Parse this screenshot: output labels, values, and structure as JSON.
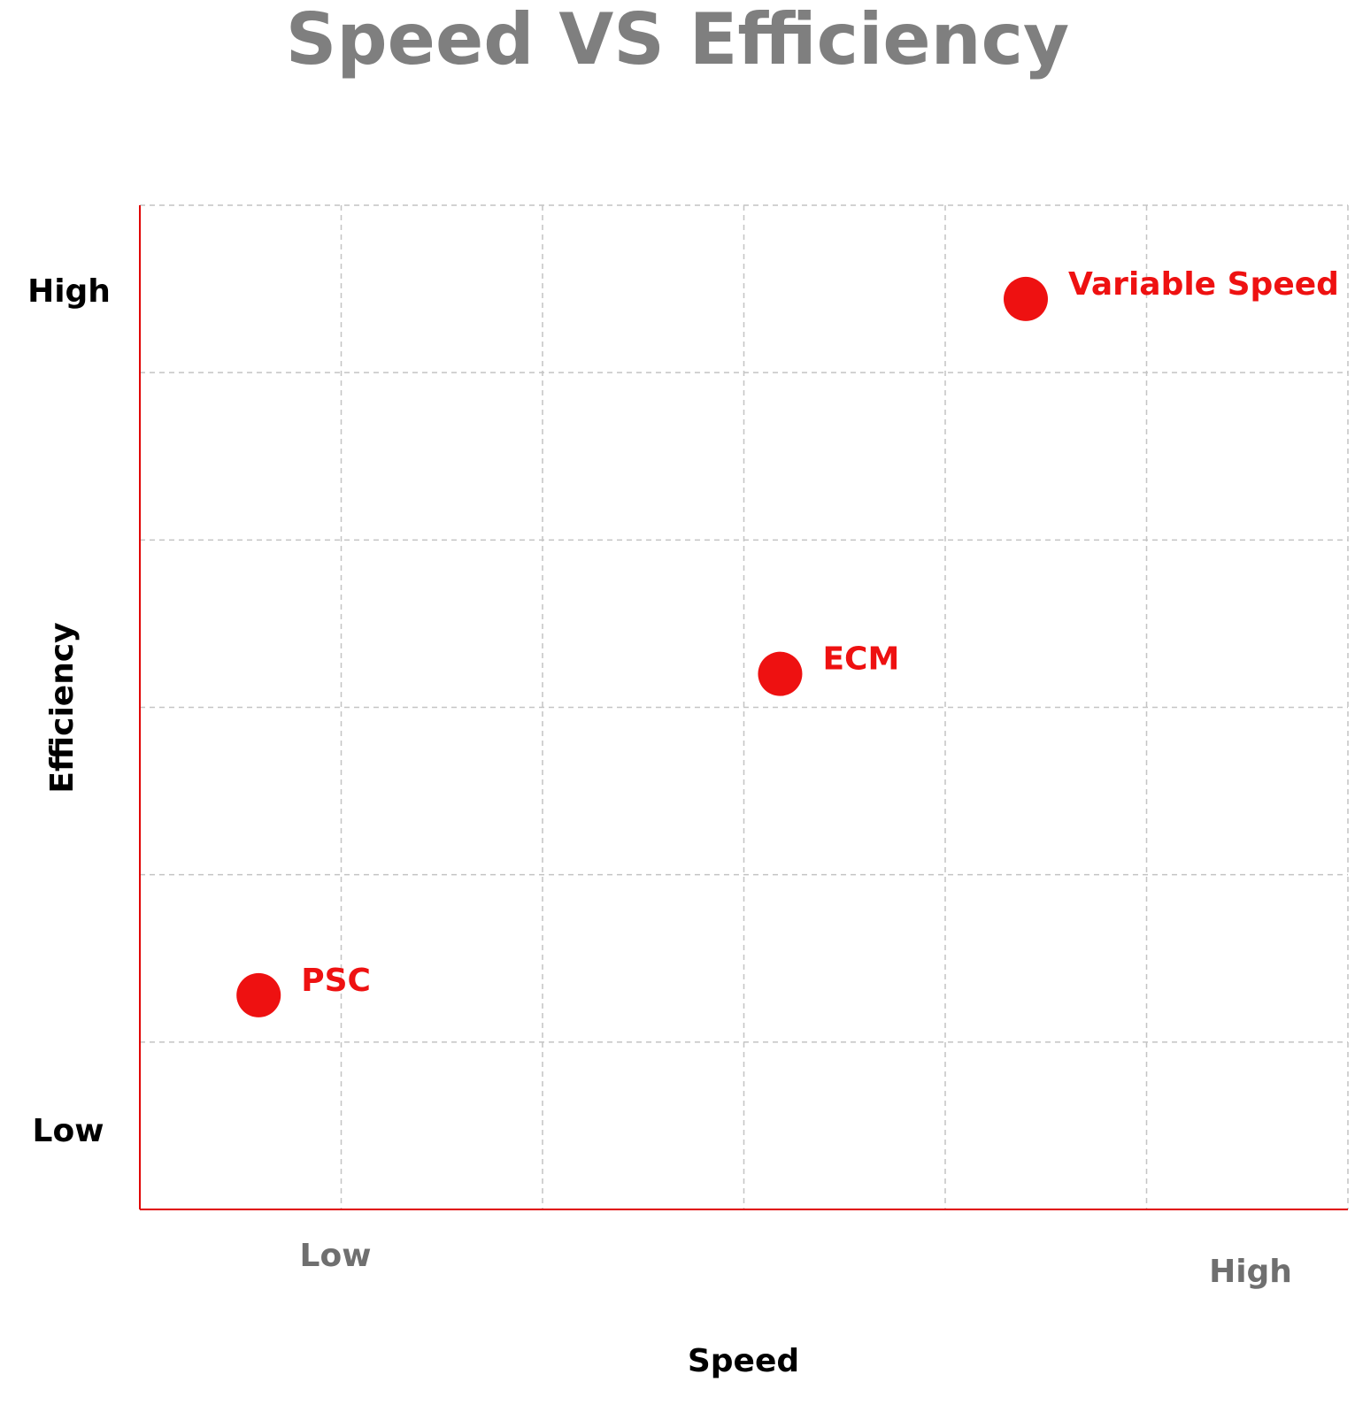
{
  "chart_data": {
    "type": "scatter",
    "title": "Speed VS Efficiency",
    "xlabel": "Speed",
    "ylabel": "Efficiency",
    "x_ticks": [
      "Low",
      "High"
    ],
    "y_ticks": [
      "High",
      "Low"
    ],
    "xlim": [
      0,
      6
    ],
    "ylim": [
      0,
      6
    ],
    "grid": true,
    "points": [
      {
        "label": "PSC",
        "x": 0.59,
        "y": 1.28
      },
      {
        "label": "ECM",
        "x": 3.18,
        "y": 3.2
      },
      {
        "label": "Variable Speed",
        "x": 4.4,
        "y": 5.44
      }
    ],
    "colors": {
      "points": "#ee1111",
      "axes": "#e00000",
      "grid": "#c4c4c4",
      "title": "#7f7f7f"
    }
  }
}
